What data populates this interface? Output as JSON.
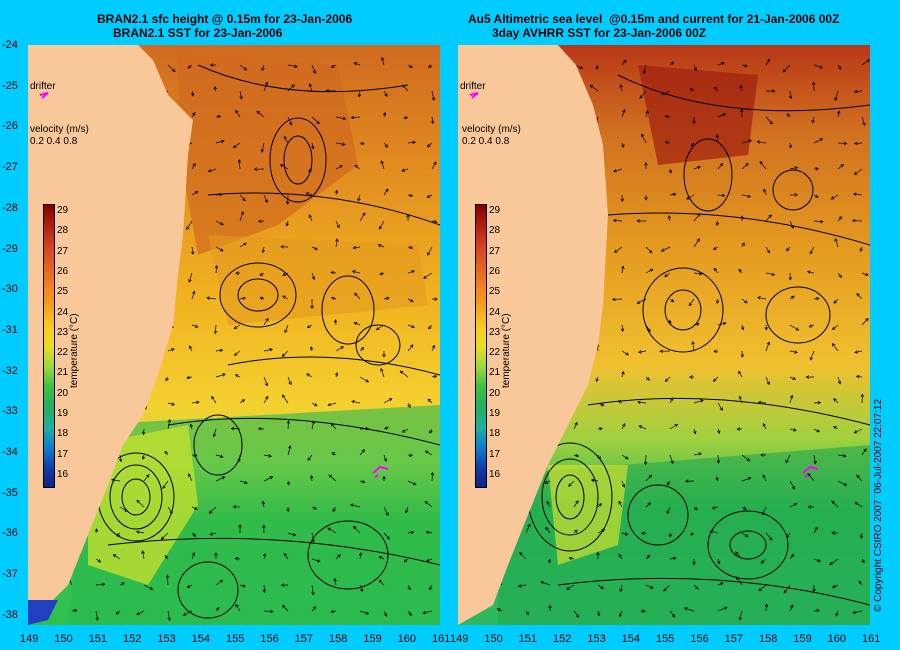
{
  "left": {
    "title1": "BRAN2.1 sfc height @ 0.15m for 23-Jan-2006",
    "title2": "BRAN2.1 SST for 23-Jan-2006"
  },
  "right": {
    "title1": "Au5 Altimetric sea level  @0.15m and current for 21-Jan-2006 00Z",
    "title2": "3day AVHRR SST for 23-Jan-2006 00Z"
  },
  "drifter_label": "drifter",
  "velocity_label": "velocity (m/s)",
  "velocity_scale": [
    "0.2",
    "0.4",
    "0.8"
  ],
  "colorbar_ticks": [
    "29",
    "28",
    "27",
    "26",
    "25",
    "24",
    "23",
    "22",
    "21",
    "20",
    "19",
    "18",
    "17",
    "16"
  ],
  "colorbar_unit": "temperature (°C)",
  "lat_ticks": [
    "-24",
    "-25",
    "-26",
    "-27",
    "-28",
    "-29",
    "-30",
    "-31",
    "-32",
    "-33",
    "-34",
    "-35",
    "-36",
    "-37",
    "-38"
  ],
  "lon_ticks": [
    "149",
    "150",
    "151",
    "152",
    "153",
    "154",
    "155",
    "156",
    "157",
    "158",
    "159",
    "160",
    "161"
  ],
  "copyright": "© Copyright CSIRO 2007 ¨06-Jul-2007 22:07:12",
  "colors": {
    "background": "#00ccff",
    "land": "#f8c89a",
    "drifter": "#ff00ff"
  }
}
